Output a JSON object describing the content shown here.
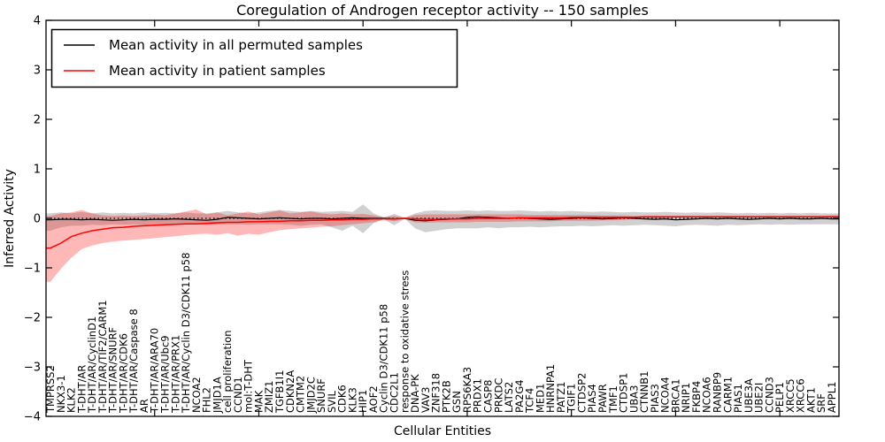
{
  "figure": {
    "title": "Coregulation of Androgen receptor activity -- 150 samples",
    "xlabel": "Cellular Entities",
    "ylabel": "Inferred Activity",
    "legend": {
      "entries": [
        {
          "label": "Mean activity in all permuted samples",
          "color": "#000000"
        },
        {
          "label": "Mean activity in patient samples",
          "color": "#ff0000"
        }
      ],
      "position": "upper left"
    },
    "colors": {
      "permuted_line": "#000000",
      "patient_line": "#ff0000",
      "permuted_band": "#c8c8c8",
      "patient_band": "#ff0000",
      "baseline": "#000000",
      "axes": "#000000",
      "background": "#ffffff"
    }
  },
  "chart_data": {
    "type": "line",
    "title": "Coregulation of Androgen receptor activity -- 150 samples",
    "xlabel": "Cellular Entities",
    "ylabel": "Inferred Activity",
    "ylim": [
      -4,
      4
    ],
    "yticks": [
      4,
      3,
      2,
      1,
      0,
      -1,
      -2,
      -3,
      -4
    ],
    "grid": false,
    "legend_position": "upper left",
    "baseline": {
      "y": 0,
      "style": "dotted",
      "color": "#000000"
    },
    "categories": [
      "TMPRSS2",
      "NKX3-1",
      "KLK2",
      "T-DHT/AR",
      "T-DHT/AR/CyclinD1",
      "T-DHT/AR/TIF2/CARM1",
      "T-DHT/AR/SNURF",
      "T-DHT/AR/CDK6",
      "T-DHT/AR/Caspase 8",
      "AR",
      "T-DHT/AR/ARA70",
      "T-DHT/AR/Ubc9",
      "T-DHT/AR/PRX1",
      "T-DHT/AR/Cyclin D3/CDK11 p58",
      "NCOA2",
      "FHL2",
      "JMJD1A",
      "cell proliferation",
      "CCND1",
      "mol:T-DHT",
      "MAK",
      "ZMIZ1",
      "TGFB1I1",
      "CDKN2A",
      "CMTM2",
      "JMJD2C",
      "SNURF",
      "SVIL",
      "CDK6",
      "KLK3",
      "HIP1",
      "AOF2",
      "Cyclin D3/CDK11 p58",
      "CDC2L1",
      "response to oxidative stress",
      "DNA-PK",
      "VAV3",
      "ZNF318",
      "PTK2B",
      "GSN",
      "RPS6KA3",
      "PRDX1",
      "CASP8",
      "PRKDC",
      "LATS2",
      "PA2G4",
      "TCF4",
      "MED1",
      "HNRNPA1",
      "PATZ1",
      "TGIF1",
      "CTDSP2",
      "PIAS4",
      "PAWR",
      "TMF1",
      "CTDSP1",
      "UBA3",
      "CTNNB1",
      "PIAS3",
      "NCOA4",
      "BRCA1",
      "NRIP1",
      "FKBP4",
      "NCOA6",
      "RANBP9",
      "CARM1",
      "PIAS1",
      "UBE3A",
      "UBE2I",
      "CCND3",
      "PELP1",
      "XRCC5",
      "XRCC6",
      "AKT1",
      "SRF",
      "APPL1"
    ],
    "series": [
      {
        "name": "Mean activity in all permuted samples",
        "color": "#000000",
        "style": "solid",
        "values": [
          -0.03,
          -0.02,
          -0.02,
          -0.03,
          -0.02,
          -0.03,
          -0.04,
          -0.03,
          -0.02,
          -0.03,
          -0.02,
          -0.02,
          -0.01,
          -0.02,
          -0.03,
          -0.04,
          -0.02,
          0.02,
          0.01,
          0.0,
          -0.01,
          0.0,
          0.01,
          0.0,
          -0.01,
          0.0,
          0.0,
          -0.01,
          0.0,
          0.01,
          0.0,
          0.0,
          0.0,
          -0.01,
          0.0,
          -0.04,
          -0.05,
          -0.03,
          -0.02,
          -0.01,
          0.02,
          0.03,
          0.02,
          0.01,
          0.0,
          0.01,
          0.0,
          -0.01,
          -0.02,
          -0.01,
          0.0,
          0.01,
          0.0,
          -0.01,
          0.0,
          0.01,
          0.0,
          -0.01,
          -0.02,
          -0.01,
          -0.03,
          -0.02,
          -0.01,
          0.0,
          -0.01,
          0.0,
          -0.01,
          -0.02,
          -0.01,
          0.0,
          -0.01,
          0.0,
          -0.01,
          -0.01,
          0.0,
          -0.01
        ]
      },
      {
        "name": "Mean activity in patient samples",
        "color": "#ff0000",
        "style": "solid",
        "values": [
          -0.6,
          -0.5,
          -0.37,
          -0.3,
          -0.25,
          -0.22,
          -0.19,
          -0.18,
          -0.16,
          -0.15,
          -0.14,
          -0.13,
          -0.12,
          -0.11,
          -0.11,
          -0.1,
          -0.09,
          -0.08,
          -0.08,
          -0.07,
          -0.07,
          -0.06,
          -0.06,
          -0.05,
          -0.05,
          -0.04,
          -0.04,
          -0.03,
          -0.03,
          -0.02,
          -0.02,
          -0.01,
          -0.01,
          -0.01,
          0.0,
          -0.01,
          -0.02,
          -0.02,
          -0.01,
          -0.01,
          -0.01,
          0.0,
          0.0,
          0.0,
          0.0,
          0.01,
          0.01,
          0.01,
          0.01,
          0.01,
          0.02,
          0.02,
          0.02,
          0.02,
          0.02,
          0.02,
          0.02,
          0.03,
          0.03,
          0.03,
          0.03,
          0.03,
          0.03,
          0.03,
          0.03,
          0.03,
          0.03,
          0.03,
          0.03,
          0.03,
          0.03,
          0.03,
          0.03,
          0.03,
          0.03,
          0.03
        ]
      }
    ],
    "bands": [
      {
        "name": "permuted samples spread",
        "color": "#c8c8c8",
        "opacity": 0.85,
        "upper": [
          0.1,
          0.12,
          0.1,
          0.13,
          0.1,
          0.12,
          0.1,
          0.11,
          0.1,
          0.12,
          0.1,
          0.11,
          0.1,
          0.12,
          0.1,
          0.1,
          0.12,
          0.15,
          0.12,
          0.1,
          0.12,
          0.15,
          0.17,
          0.15,
          0.13,
          0.15,
          0.13,
          0.14,
          0.15,
          0.13,
          0.28,
          0.1,
          0.02,
          0.09,
          0.01,
          0.1,
          0.15,
          0.16,
          0.15,
          0.15,
          0.16,
          0.15,
          0.16,
          0.15,
          0.15,
          0.16,
          0.15,
          0.14,
          0.15,
          0.14,
          0.15,
          0.14,
          0.13,
          0.14,
          0.13,
          0.12,
          0.13,
          0.12,
          0.12,
          0.13,
          0.12,
          0.11,
          0.12,
          0.11,
          0.12,
          0.11,
          0.1,
          0.11,
          0.1,
          0.11,
          0.1,
          0.11,
          0.1,
          0.11,
          0.1,
          0.1
        ],
        "lower": [
          -0.25,
          -0.18,
          -0.15,
          -0.15,
          -0.13,
          -0.14,
          -0.12,
          -0.13,
          -0.12,
          -0.14,
          -0.12,
          -0.12,
          -0.13,
          -0.12,
          -0.12,
          -0.14,
          -0.12,
          -0.12,
          -0.12,
          -0.13,
          -0.12,
          -0.12,
          -0.12,
          -0.13,
          -0.15,
          -0.13,
          -0.12,
          -0.18,
          -0.25,
          -0.15,
          -0.3,
          -0.1,
          -0.02,
          -0.14,
          -0.01,
          -0.2,
          -0.28,
          -0.25,
          -0.22,
          -0.2,
          -0.2,
          -0.2,
          -0.18,
          -0.2,
          -0.18,
          -0.18,
          -0.17,
          -0.18,
          -0.17,
          -0.16,
          -0.16,
          -0.15,
          -0.16,
          -0.15,
          -0.14,
          -0.15,
          -0.14,
          -0.13,
          -0.14,
          -0.15,
          -0.16,
          -0.14,
          -0.13,
          -0.14,
          -0.15,
          -0.13,
          -0.14,
          -0.13,
          -0.12,
          -0.13,
          -0.12,
          -0.13,
          -0.12,
          -0.12,
          -0.12,
          -0.12
        ]
      },
      {
        "name": "patient samples spread",
        "color": "#ff0000",
        "opacity": 0.28,
        "upper": [
          0.05,
          0.1,
          0.12,
          0.17,
          0.1,
          0.06,
          0.05,
          0.06,
          0.05,
          0.06,
          0.08,
          0.06,
          0.1,
          0.14,
          0.18,
          0.08,
          0.12,
          0.06,
          0.1,
          0.14,
          0.08,
          0.12,
          0.16,
          0.1,
          0.12,
          0.14,
          0.1,
          0.08,
          0.1,
          0.08,
          0.09,
          0.06,
          0.02,
          0.05,
          0.01,
          0.07,
          0.08,
          0.08,
          0.08,
          0.08,
          0.08,
          0.08,
          0.08,
          0.08,
          0.08,
          0.08,
          0.07,
          0.07,
          0.07,
          0.07,
          0.07,
          0.07,
          0.07,
          0.06,
          0.06,
          0.06,
          0.05,
          0.05,
          0.05,
          0.05,
          0.05,
          0.05,
          0.05,
          0.05,
          0.05,
          0.05,
          0.05,
          0.05,
          0.05,
          0.05,
          0.05,
          0.05,
          0.05,
          0.05,
          0.05,
          0.06
        ],
        "lower": [
          -1.28,
          -1.02,
          -0.8,
          -0.62,
          -0.55,
          -0.5,
          -0.47,
          -0.45,
          -0.43,
          -0.42,
          -0.4,
          -0.38,
          -0.36,
          -0.34,
          -0.32,
          -0.31,
          -0.33,
          -0.3,
          -0.35,
          -0.31,
          -0.33,
          -0.28,
          -0.24,
          -0.22,
          -0.2,
          -0.19,
          -0.17,
          -0.16,
          -0.14,
          -0.12,
          -0.1,
          -0.08,
          -0.02,
          -0.06,
          -0.01,
          -0.08,
          -0.09,
          -0.08,
          -0.08,
          -0.08,
          -0.08,
          -0.07,
          -0.07,
          -0.07,
          -0.07,
          -0.06,
          -0.06,
          -0.06,
          -0.06,
          -0.05,
          -0.05,
          -0.05,
          -0.05,
          -0.04,
          -0.04,
          -0.03,
          -0.01,
          0.0,
          0.0,
          0.0,
          0.01,
          0.01,
          0.01,
          0.01,
          0.01,
          0.01,
          0.01,
          0.01,
          0.01,
          0.01,
          0.01,
          0.01,
          0.01,
          0.01,
          0.01,
          0.01
        ]
      }
    ]
  }
}
